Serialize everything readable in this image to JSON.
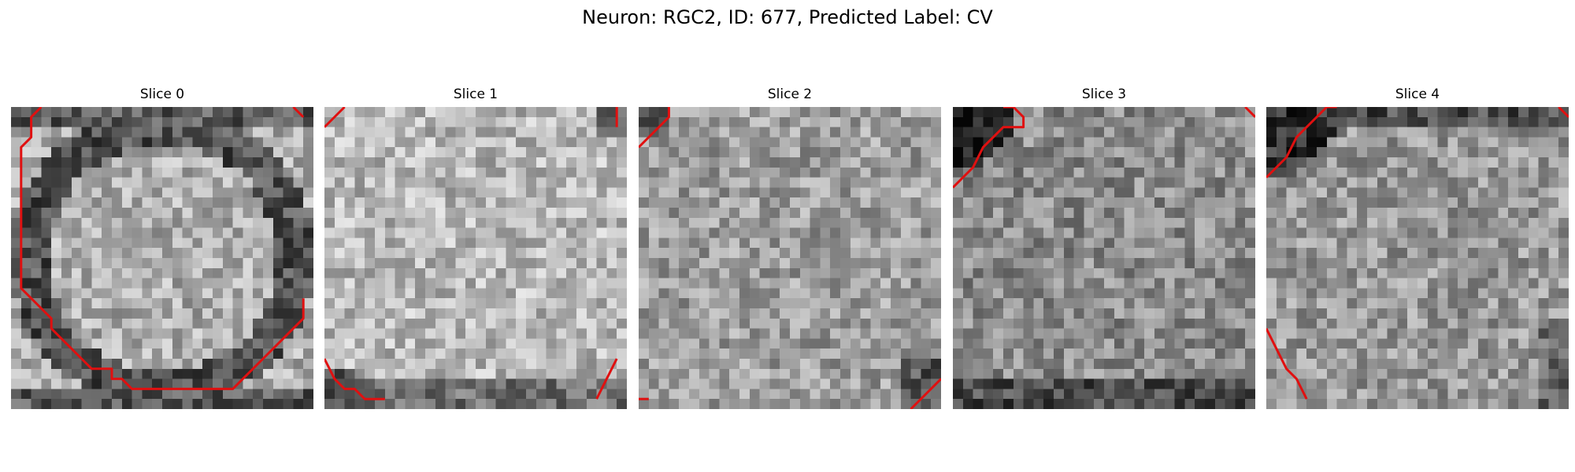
{
  "figure": {
    "suptitle": "Neuron: RGC2, ID: 677, Predicted Label: CV",
    "grid_size": 30,
    "contour_color": "#e01010",
    "colormap": "gray"
  },
  "panels": [
    {
      "title": "Slice 0",
      "contours": [
        [
          [
            3,
            0
          ],
          [
            2,
            1
          ],
          [
            2,
            3
          ],
          [
            1,
            4
          ],
          [
            1,
            18
          ],
          [
            2,
            19
          ],
          [
            3,
            20
          ],
          [
            4,
            21
          ],
          [
            4,
            22
          ],
          [
            5,
            23
          ],
          [
            6,
            24
          ],
          [
            7,
            25
          ],
          [
            8,
            26
          ],
          [
            10,
            26
          ],
          [
            10,
            27
          ],
          [
            11,
            27
          ],
          [
            12,
            28
          ],
          [
            22,
            28
          ],
          [
            23,
            27
          ],
          [
            24,
            26
          ],
          [
            25,
            25
          ],
          [
            26,
            24
          ],
          [
            27,
            23
          ],
          [
            28,
            22
          ],
          [
            29,
            21
          ],
          [
            29,
            19
          ]
        ],
        [
          [
            29,
            1
          ],
          [
            28,
            0
          ]
        ]
      ],
      "pattern": "ring"
    },
    {
      "title": "Slice 1",
      "contours": [
        [
          [
            0,
            2
          ],
          [
            2,
            0
          ]
        ],
        [
          [
            29,
            2
          ],
          [
            29,
            1
          ],
          [
            29,
            0
          ]
        ],
        [
          [
            0,
            25
          ],
          [
            1,
            27
          ],
          [
            2,
            28
          ],
          [
            3,
            28
          ],
          [
            4,
            29
          ],
          [
            6,
            29
          ]
        ],
        [
          [
            29,
            25
          ],
          [
            28,
            27
          ],
          [
            27,
            29
          ]
        ]
      ],
      "pattern": "bright"
    },
    {
      "title": "Slice 2",
      "contours": [
        [
          [
            0,
            4
          ],
          [
            3,
            1
          ],
          [
            3,
            0
          ]
        ],
        [
          [
            0,
            29
          ],
          [
            1,
            29
          ]
        ],
        [
          [
            27,
            30
          ],
          [
            30,
            27
          ]
        ]
      ],
      "pattern": "flat"
    },
    {
      "title": "Slice 3",
      "contours": [
        [
          [
            0,
            8
          ],
          [
            1,
            7
          ],
          [
            2,
            6
          ],
          [
            3,
            4
          ],
          [
            4,
            3
          ],
          [
            5,
            2
          ],
          [
            7,
            2
          ],
          [
            7,
            1
          ],
          [
            6,
            0
          ],
          [
            5,
            0
          ]
        ],
        [
          [
            29,
            0
          ],
          [
            30,
            1
          ]
        ]
      ],
      "pattern": "dark-corner"
    },
    {
      "title": "Slice 4",
      "contours": [
        [
          [
            0,
            7
          ],
          [
            2,
            5
          ],
          [
            3,
            3
          ],
          [
            4,
            2
          ],
          [
            5,
            1
          ],
          [
            6,
            0
          ],
          [
            7,
            0
          ]
        ],
        [
          [
            0,
            22
          ],
          [
            1,
            24
          ],
          [
            2,
            26
          ],
          [
            3,
            27
          ],
          [
            4,
            29
          ]
        ],
        [
          [
            29,
            0
          ],
          [
            30,
            1
          ]
        ]
      ],
      "pattern": "dark-edge"
    }
  ]
}
